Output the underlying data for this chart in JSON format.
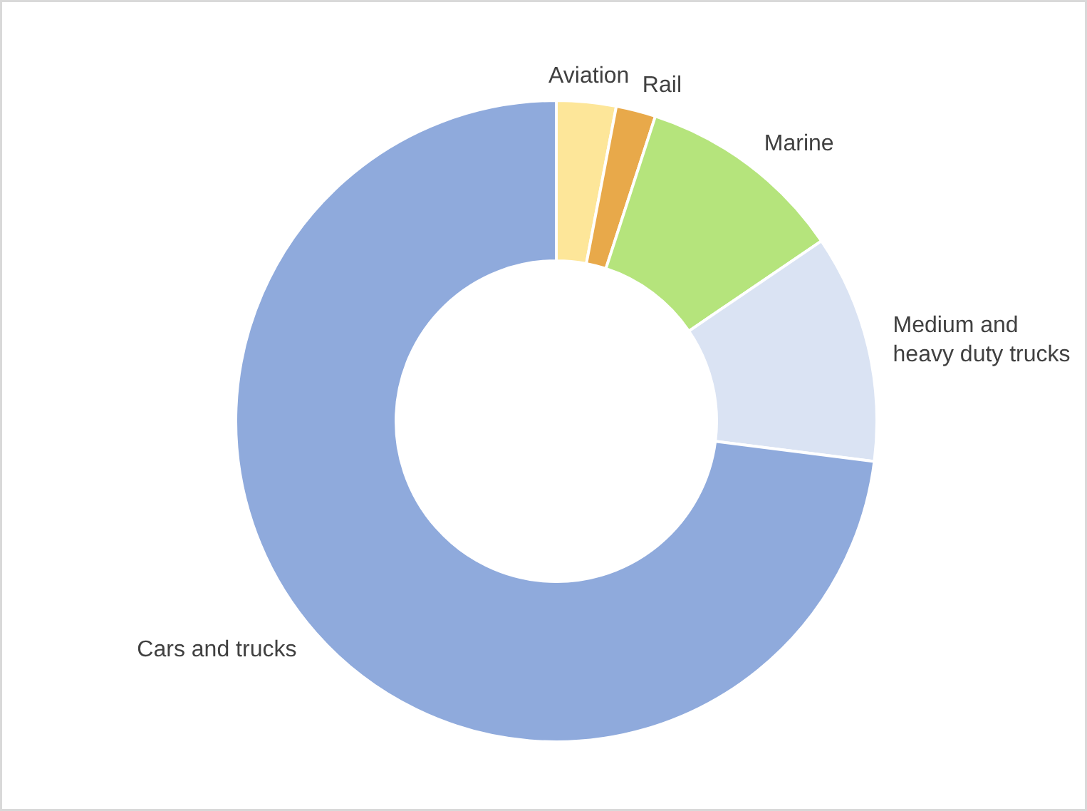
{
  "chart_data": {
    "type": "donut",
    "categories": [
      "Aviation",
      "Rail",
      "Marine",
      "Medium and heavy duty trucks",
      "Cars and trucks"
    ],
    "values": [
      3,
      2,
      10.5,
      11.5,
      73
    ],
    "colors": [
      "#fde699",
      "#e8a94a",
      "#b5e47c",
      "#dae3f3",
      "#8faadc"
    ],
    "legend": false
  }
}
